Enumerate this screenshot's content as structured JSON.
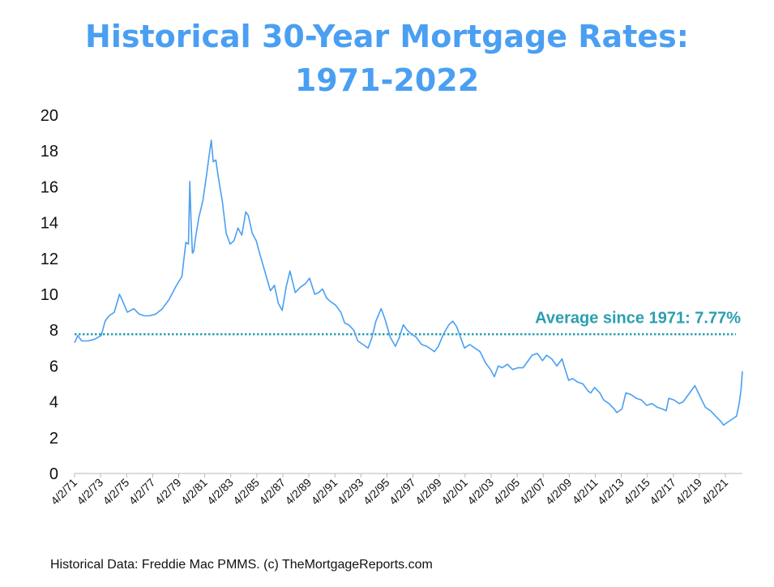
{
  "chart_data": {
    "type": "line",
    "title_line1": "Historical 30-Year Mortgage Rates:",
    "title_line2": "1971-2022",
    "source": "Historical Data: Freddie Mac PMMS. (c) TheMortgageReports.com",
    "ylim": [
      0,
      20
    ],
    "y_ticks": [
      "0",
      "2",
      "4",
      "6",
      "8",
      "10",
      "12",
      "14",
      "16",
      "18",
      "20"
    ],
    "x_range": [
      1971.25,
      2022.55
    ],
    "x_tick_labels": [
      "4/2/71",
      "4/2/73",
      "4/2/75",
      "4/2/77",
      "4/2/79",
      "4/2/81",
      "4/2/83",
      "4/2/85",
      "4/2/87",
      "4/2/89",
      "4/2/91",
      "4/2/93",
      "4/2/95",
      "4/2/97",
      "4/2/99",
      "4/2/01",
      "4/2/03",
      "4/2/05",
      "4/2/07",
      "4/2/09",
      "4/2/11",
      "4/2/13",
      "4/2/15",
      "4/2/17",
      "4/2/19",
      "4/2/21"
    ],
    "grid": false,
    "line_color": "#4a9ff2",
    "average": {
      "value": 7.77,
      "label": "Average since 1971: 7.77%",
      "color": "#2a9fb0"
    },
    "series": [
      {
        "x": [
          1971.25,
          1971.5,
          1971.8,
          1972.3,
          1972.8,
          1973.3,
          1973.6,
          1973.9,
          1974.3,
          1974.7,
          1974.9,
          1975.3,
          1975.8,
          1976.2,
          1976.6,
          1977.0,
          1977.5,
          1978.0,
          1978.5,
          1979.0,
          1979.5,
          1979.8,
          1980.0,
          1980.1,
          1980.2,
          1980.3,
          1980.4,
          1980.55,
          1980.8,
          1981.1,
          1981.4,
          1981.6,
          1981.75,
          1981.9,
          1982.1,
          1982.3,
          1982.6,
          1982.9,
          1983.2,
          1983.5,
          1983.8,
          1984.1,
          1984.4,
          1984.6,
          1984.9,
          1985.2,
          1985.5,
          1985.9,
          1986.3,
          1986.6,
          1986.9,
          1987.2,
          1987.5,
          1987.8,
          1988.2,
          1988.6,
          1989.0,
          1989.3,
          1989.7,
          1990.0,
          1990.3,
          1990.6,
          1990.9,
          1991.3,
          1991.7,
          1992.0,
          1992.3,
          1992.7,
          1993.0,
          1993.4,
          1993.8,
          1994.1,
          1994.4,
          1994.8,
          1995.1,
          1995.5,
          1995.9,
          1996.2,
          1996.5,
          1996.8,
          1997.1,
          1997.5,
          1997.9,
          1998.3,
          1998.7,
          1998.9,
          1999.2,
          1999.6,
          2000.0,
          2000.3,
          2000.6,
          2000.9,
          2001.2,
          2001.6,
          2002.0,
          2002.4,
          2002.8,
          2003.2,
          2003.5,
          2003.8,
          2004.1,
          2004.5,
          2004.9,
          2005.3,
          2005.7,
          2006.0,
          2006.4,
          2006.8,
          2007.2,
          2007.5,
          2007.9,
          2008.3,
          2008.7,
          2008.9,
          2009.2,
          2009.5,
          2009.9,
          2010.3,
          2010.7,
          2010.9,
          2011.2,
          2011.6,
          2011.9,
          2012.3,
          2012.7,
          2012.9,
          2013.3,
          2013.6,
          2014.0,
          2014.4,
          2014.8,
          2015.2,
          2015.6,
          2016.0,
          2016.4,
          2016.7,
          2016.9,
          2017.3,
          2017.7,
          2018.0,
          2018.5,
          2018.9,
          2019.3,
          2019.7,
          2020.1,
          2020.5,
          2020.9,
          2021.1,
          2021.5,
          2021.9,
          2022.1,
          2022.3,
          2022.45,
          2022.55
        ],
        "y": [
          7.3,
          7.7,
          7.4,
          7.4,
          7.5,
          7.7,
          8.5,
          8.8,
          9.0,
          10.0,
          9.7,
          9.0,
          9.2,
          8.9,
          8.8,
          8.8,
          8.9,
          9.2,
          9.7,
          10.4,
          11.0,
          12.9,
          12.8,
          16.3,
          14.0,
          12.3,
          12.4,
          13.2,
          14.3,
          15.2,
          16.7,
          17.8,
          18.6,
          17.4,
          17.5,
          16.5,
          15.2,
          13.4,
          12.8,
          13.0,
          13.7,
          13.3,
          14.6,
          14.4,
          13.4,
          13.0,
          12.2,
          11.2,
          10.2,
          10.5,
          9.5,
          9.1,
          10.4,
          11.3,
          10.1,
          10.4,
          10.6,
          10.9,
          10.0,
          10.1,
          10.3,
          9.8,
          9.6,
          9.4,
          9.0,
          8.4,
          8.3,
          8.0,
          7.4,
          7.2,
          7.0,
          7.6,
          8.5,
          9.2,
          8.6,
          7.6,
          7.1,
          7.6,
          8.3,
          8.0,
          7.8,
          7.6,
          7.2,
          7.1,
          6.9,
          6.8,
          7.1,
          7.8,
          8.3,
          8.5,
          8.2,
          7.6,
          7.0,
          7.2,
          7.0,
          6.8,
          6.2,
          5.8,
          5.4,
          6.0,
          5.9,
          6.1,
          5.8,
          5.9,
          5.9,
          6.2,
          6.6,
          6.7,
          6.3,
          6.6,
          6.4,
          6.0,
          6.4,
          5.9,
          5.2,
          5.3,
          5.1,
          5.0,
          4.6,
          4.5,
          4.8,
          4.5,
          4.1,
          3.9,
          3.6,
          3.4,
          3.6,
          4.5,
          4.4,
          4.2,
          4.1,
          3.8,
          3.9,
          3.7,
          3.6,
          3.5,
          4.2,
          4.1,
          3.9,
          4.0,
          4.5,
          4.9,
          4.3,
          3.7,
          3.5,
          3.2,
          2.9,
          2.7,
          2.9,
          3.1,
          3.2,
          3.9,
          4.7,
          5.7
        ]
      }
    ]
  }
}
